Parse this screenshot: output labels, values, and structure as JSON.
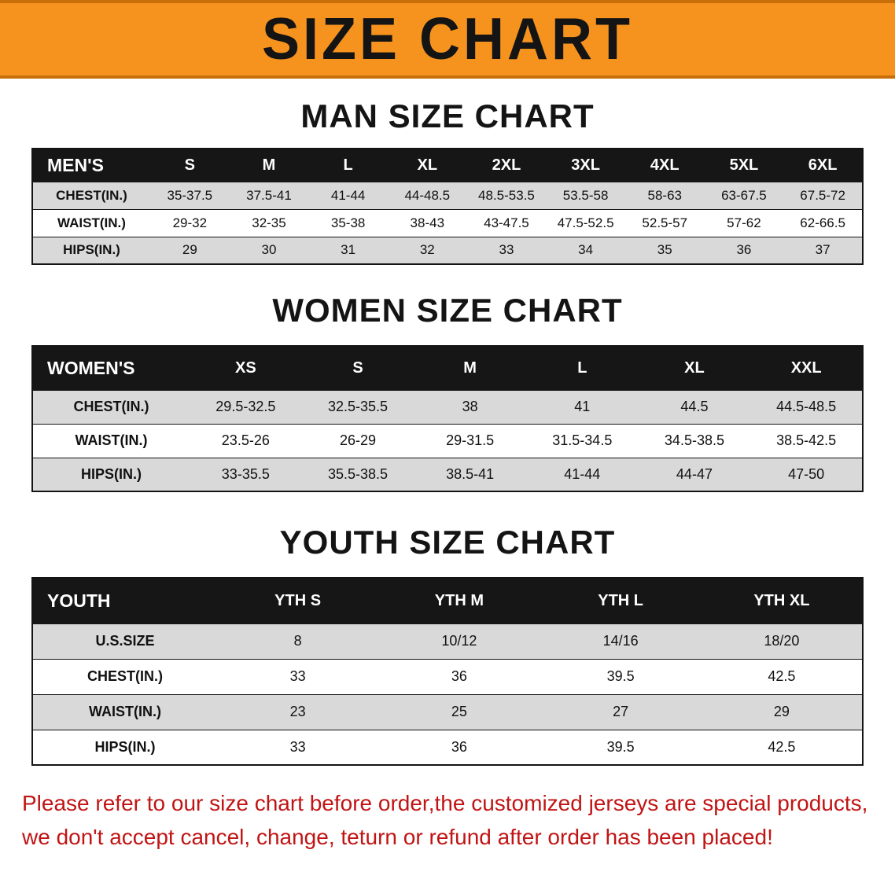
{
  "banner": {
    "title": "SIZE CHART",
    "bg_color": "#F6921E",
    "text_color": "#141414"
  },
  "colors": {
    "table_header_bg": "#161616",
    "table_header_text": "#FFFFFF",
    "row_stripe": "#D9D9D9",
    "footer_text": "#C11414"
  },
  "sections": {
    "men": {
      "heading": "MAN SIZE CHART",
      "table": {
        "header": [
          "MEN'S",
          "S",
          "M",
          "L",
          "XL",
          "2XL",
          "3XL",
          "4XL",
          "5XL",
          "6XL"
        ],
        "rows": [
          [
            "CHEST(IN.)",
            "35-37.5",
            "37.5-41",
            "41-44",
            "44-48.5",
            "48.5-53.5",
            "53.5-58",
            "58-63",
            "63-67.5",
            "67.5-72"
          ],
          [
            "WAIST(IN.)",
            "29-32",
            "32-35",
            "35-38",
            "38-43",
            "43-47.5",
            "47.5-52.5",
            "52.5-57",
            "57-62",
            "62-66.5"
          ],
          [
            "HIPS(IN.)",
            "29",
            "30",
            "31",
            "32",
            "33",
            "34",
            "35",
            "36",
            "37"
          ]
        ]
      }
    },
    "women": {
      "heading": "WOMEN SIZE CHART",
      "table": {
        "header": [
          "WOMEN'S",
          "XS",
          "S",
          "M",
          "L",
          "XL",
          "XXL"
        ],
        "rows": [
          [
            "CHEST(IN.)",
            "29.5-32.5",
            "32.5-35.5",
            "38",
            "41",
            "44.5",
            "44.5-48.5"
          ],
          [
            "WAIST(IN.)",
            "23.5-26",
            "26-29",
            "29-31.5",
            "31.5-34.5",
            "34.5-38.5",
            "38.5-42.5"
          ],
          [
            "HIPS(IN.)",
            "33-35.5",
            "35.5-38.5",
            "38.5-41",
            "41-44",
            "44-47",
            "47-50"
          ]
        ]
      }
    },
    "youth": {
      "heading": "YOUTH SIZE CHART",
      "table": {
        "header": [
          "YOUTH",
          "YTH S",
          "YTH M",
          "YTH L",
          "YTH XL"
        ],
        "rows": [
          [
            "U.S.SIZE",
            "8",
            "10/12",
            "14/16",
            "18/20"
          ],
          [
            "CHEST(IN.)",
            "33",
            "36",
            "39.5",
            "42.5"
          ],
          [
            "WAIST(IN.)",
            "23",
            "25",
            "27",
            "29"
          ],
          [
            "HIPS(IN.)",
            "33",
            "36",
            "39.5",
            "42.5"
          ]
        ]
      }
    }
  },
  "footer": {
    "line1": "Please refer to our size chart before order,the customized jerseys are special products,",
    "line2": "we don't accept cancel, change, teturn or refund after order has been placed!"
  }
}
